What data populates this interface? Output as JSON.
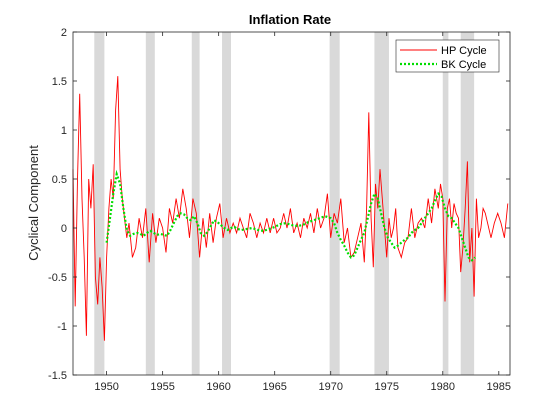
{
  "chart_data": {
    "type": "line",
    "title": "Inflation Rate",
    "xlabel": "",
    "ylabel": "Cyclical Component",
    "xlim": [
      1947.0,
      1986.0
    ],
    "ylim": [
      -1.5,
      2.0
    ],
    "x_ticks": [
      1950,
      1955,
      1960,
      1965,
      1970,
      1975,
      1980,
      1985
    ],
    "y_ticks": [
      -1.5,
      -1,
      -0.5,
      0,
      0.5,
      1,
      1.5,
      2
    ],
    "y_tick_labels": [
      "-1.5",
      "-1",
      "-0.5",
      "0",
      "0.5",
      "1",
      "1.5",
      "2"
    ],
    "grid": false,
    "legend_position": "top-right",
    "recession_bands": [
      [
        1948.9,
        1949.8
      ],
      [
        1953.5,
        1954.3
      ],
      [
        1957.6,
        1958.3
      ],
      [
        1960.3,
        1961.1
      ],
      [
        1969.9,
        1970.8
      ],
      [
        1973.9,
        1975.2
      ],
      [
        1980.0,
        1980.5
      ],
      [
        1981.6,
        1982.8
      ]
    ],
    "colors": {
      "hp": "#ff0000",
      "bk": "#00dd00",
      "band": "#d9d9d9"
    },
    "series": [
      {
        "name": "HP Cycle",
        "style": "solid",
        "x": [
          1947.0,
          1947.2,
          1947.4,
          1947.6,
          1947.8,
          1948.0,
          1948.2,
          1948.4,
          1948.6,
          1948.8,
          1949.0,
          1949.2,
          1949.4,
          1949.6,
          1949.8,
          1950.0,
          1950.2,
          1950.4,
          1950.6,
          1950.8,
          1951.0,
          1951.2,
          1951.4,
          1951.6,
          1951.8,
          1952.0,
          1952.3,
          1952.6,
          1952.9,
          1953.2,
          1953.5,
          1953.8,
          1954.1,
          1954.4,
          1954.7,
          1955.0,
          1955.3,
          1955.6,
          1955.9,
          1956.2,
          1956.5,
          1956.8,
          1957.1,
          1957.4,
          1957.7,
          1958.0,
          1958.3,
          1958.6,
          1958.9,
          1959.2,
          1959.5,
          1959.8,
          1960.1,
          1960.4,
          1960.7,
          1961.0,
          1961.3,
          1961.6,
          1961.9,
          1962.2,
          1962.5,
          1962.8,
          1963.1,
          1963.4,
          1963.7,
          1964.0,
          1964.3,
          1964.6,
          1964.9,
          1965.2,
          1965.5,
          1965.8,
          1966.1,
          1966.4,
          1966.7,
          1967.0,
          1967.3,
          1967.6,
          1967.9,
          1968.2,
          1968.5,
          1968.8,
          1969.1,
          1969.4,
          1969.7,
          1970.0,
          1970.3,
          1970.6,
          1970.9,
          1971.2,
          1971.5,
          1971.8,
          1972.1,
          1972.4,
          1972.7,
          1973.0,
          1973.2,
          1973.4,
          1973.6,
          1973.8,
          1974.0,
          1974.2,
          1974.4,
          1974.6,
          1974.8,
          1975.0,
          1975.2,
          1975.4,
          1975.6,
          1975.8,
          1976.0,
          1976.3,
          1976.6,
          1976.9,
          1977.2,
          1977.5,
          1977.8,
          1978.1,
          1978.4,
          1978.7,
          1979.0,
          1979.3,
          1979.6,
          1979.8,
          1980.0,
          1980.2,
          1980.4,
          1980.6,
          1980.8,
          1981.0,
          1981.2,
          1981.4,
          1981.6,
          1981.8,
          1982.0,
          1982.2,
          1982.4,
          1982.6,
          1982.8,
          1983.0,
          1983.2,
          1983.4,
          1983.6,
          1983.8,
          1984.0,
          1984.3,
          1984.6,
          1984.9,
          1985.2,
          1985.5,
          1985.8
        ],
        "y": [
          0.6,
          -0.8,
          0.5,
          1.37,
          0.3,
          -0.3,
          -1.1,
          0.5,
          0.2,
          0.65,
          -0.5,
          -0.78,
          -0.3,
          -0.6,
          -1.15,
          -0.3,
          0.2,
          0.5,
          0.3,
          1.2,
          1.55,
          0.6,
          0.3,
          0.1,
          -0.1,
          0.05,
          -0.3,
          -0.2,
          0.1,
          -0.1,
          0.2,
          -0.35,
          0.15,
          -0.15,
          0.1,
          0.0,
          -0.25,
          0.2,
          0.05,
          0.3,
          0.1,
          0.4,
          0.2,
          -0.1,
          0.3,
          0.15,
          -0.3,
          0.1,
          -0.2,
          0.15,
          -0.15,
          0.1,
          0.25,
          -0.1,
          0.1,
          -0.05,
          0.05,
          -0.05,
          0.1,
          0.0,
          -0.1,
          0.15,
          0.05,
          -0.1,
          0.05,
          -0.05,
          0.1,
          -0.05,
          0.1,
          -0.05,
          0.0,
          0.15,
          0.0,
          0.2,
          -0.05,
          0.05,
          -0.1,
          0.1,
          0.0,
          0.15,
          -0.05,
          0.2,
          0.0,
          0.1,
          0.35,
          -0.1,
          0.15,
          0.05,
          0.3,
          -0.15,
          0.0,
          -0.3,
          -0.25,
          -0.1,
          0.05,
          -0.35,
          0.2,
          1.18,
          0.1,
          -0.4,
          0.45,
          0.2,
          0.6,
          0.3,
          0.0,
          -0.3,
          0.1,
          -0.1,
          0.0,
          0.2,
          -0.2,
          -0.3,
          -0.15,
          -0.1,
          0.2,
          -0.1,
          0.05,
          0.1,
          0.0,
          0.3,
          0.05,
          0.4,
          0.2,
          0.45,
          0.3,
          -0.75,
          0.2,
          0.3,
          0.0,
          0.25,
          0.15,
          0.1,
          -0.45,
          -0.2,
          0.2,
          0.68,
          -0.35,
          0.0,
          -0.7,
          0.3,
          -0.1,
          0.0,
          0.2,
          0.15,
          0.05,
          -0.1,
          0.05,
          0.15,
          0.05,
          -0.1,
          0.25
        ]
      },
      {
        "name": "BK Cycle",
        "style": "dotted",
        "x": [
          1950.0,
          1950.3,
          1950.6,
          1950.9,
          1951.2,
          1951.5,
          1951.8,
          1952.1,
          1952.4,
          1952.7,
          1953.0,
          1953.3,
          1953.6,
          1953.9,
          1954.2,
          1954.5,
          1954.8,
          1955.1,
          1955.4,
          1955.7,
          1956.0,
          1956.3,
          1956.6,
          1956.9,
          1957.2,
          1957.5,
          1957.8,
          1958.1,
          1958.4,
          1958.7,
          1959.0,
          1959.3,
          1959.6,
          1959.9,
          1960.2,
          1960.5,
          1960.8,
          1961.1,
          1961.4,
          1961.7,
          1962.0,
          1962.5,
          1963.0,
          1963.5,
          1964.0,
          1964.5,
          1965.0,
          1965.5,
          1966.0,
          1966.5,
          1967.0,
          1967.5,
          1968.0,
          1968.5,
          1969.0,
          1969.5,
          1970.0,
          1970.3,
          1970.6,
          1970.9,
          1971.2,
          1971.5,
          1971.8,
          1972.1,
          1972.4,
          1972.7,
          1973.0,
          1973.3,
          1973.6,
          1973.9,
          1974.2,
          1974.5,
          1974.8,
          1975.1,
          1975.4,
          1975.7,
          1976.0,
          1976.3,
          1976.6,
          1976.9,
          1977.2,
          1977.5,
          1977.8,
          1978.1,
          1978.4,
          1978.7,
          1979.0,
          1979.3,
          1979.6,
          1979.9,
          1980.2,
          1980.5,
          1980.8,
          1981.1,
          1981.4,
          1981.7,
          1982.0,
          1982.3,
          1982.6,
          1982.9
        ],
        "y": [
          -0.15,
          0.1,
          0.35,
          0.55,
          0.45,
          0.2,
          -0.02,
          -0.08,
          -0.06,
          -0.05,
          -0.06,
          -0.08,
          -0.05,
          -0.03,
          -0.05,
          -0.07,
          -0.06,
          -0.07,
          -0.08,
          -0.02,
          0.05,
          0.12,
          0.15,
          0.14,
          0.1,
          0.08,
          0.12,
          0.05,
          -0.05,
          -0.08,
          -0.04,
          0.02,
          0.08,
          0.06,
          0.03,
          0.0,
          -0.02,
          0.0,
          0.01,
          -0.01,
          -0.02,
          -0.01,
          0.0,
          -0.02,
          -0.03,
          -0.01,
          0.01,
          0.04,
          0.05,
          0.03,
          0.02,
          0.03,
          0.06,
          0.08,
          0.1,
          0.12,
          0.1,
          0.05,
          -0.05,
          -0.12,
          -0.18,
          -0.25,
          -0.3,
          -0.28,
          -0.2,
          -0.12,
          -0.05,
          0.1,
          0.25,
          0.35,
          0.3,
          0.15,
          0.0,
          -0.1,
          -0.15,
          -0.2,
          -0.18,
          -0.15,
          -0.12,
          -0.1,
          -0.05,
          -0.02,
          0.0,
          0.05,
          0.1,
          0.15,
          0.2,
          0.28,
          0.35,
          0.32,
          0.2,
          0.12,
          0.1,
          0.05,
          0.0,
          -0.1,
          -0.2,
          -0.3,
          -0.33,
          -0.3
        ]
      }
    ]
  }
}
